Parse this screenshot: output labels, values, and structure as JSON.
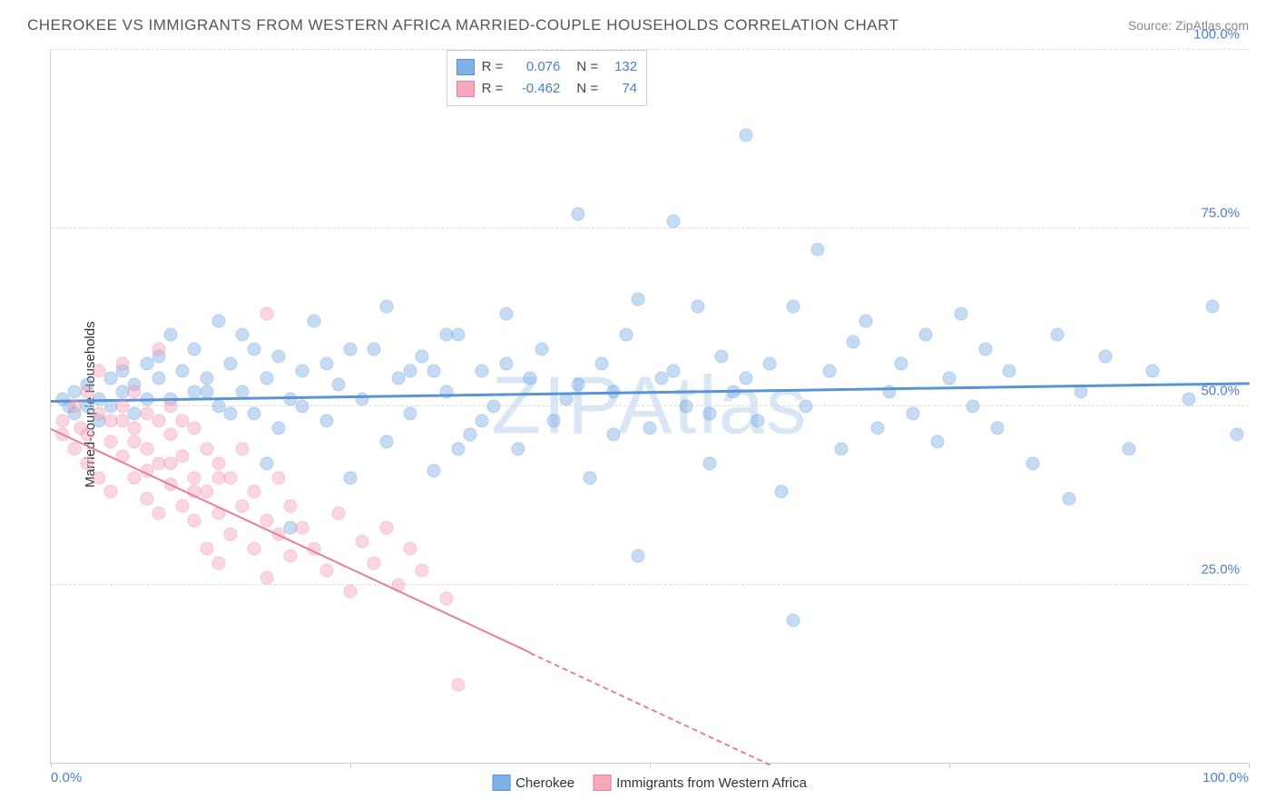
{
  "title": "CHEROKEE VS IMMIGRANTS FROM WESTERN AFRICA MARRIED-COUPLE HOUSEHOLDS CORRELATION CHART",
  "source_label": "Source: ",
  "source_name": "ZipAtlas.com",
  "y_axis_label": "Married-couple Households",
  "watermark": "ZIPAtlas",
  "watermark_color": "#d8e6f5",
  "chart": {
    "type": "scatter",
    "background_color": "#ffffff",
    "grid_color": "#dddddd",
    "border_color": "#cccccc",
    "xlim": [
      0,
      100
    ],
    "ylim": [
      0,
      100
    ],
    "x_ticks": [
      0,
      25,
      50,
      75,
      100
    ],
    "x_tick_labels": [
      "0.0%",
      "",
      "",
      "",
      "100.0%"
    ],
    "y_ticks": [
      25,
      50,
      75,
      100
    ],
    "y_tick_labels": [
      "25.0%",
      "50.0%",
      "75.0%",
      "100.0%"
    ],
    "tick_label_color": "#4a7fc9",
    "marker_size": 15,
    "marker_opacity": 0.45,
    "series": [
      {
        "name": "Cherokee",
        "color": "#7fb0e8",
        "border_color": "#5a93d6",
        "R": "0.076",
        "N": "132",
        "trend": {
          "y_start": 51,
          "y_end": 53.5,
          "width": 3
        },
        "points": [
          [
            1,
            51
          ],
          [
            1.5,
            50
          ],
          [
            2,
            52
          ],
          [
            2,
            49
          ],
          [
            3,
            50
          ],
          [
            3,
            53
          ],
          [
            4,
            51
          ],
          [
            4,
            48
          ],
          [
            5,
            54
          ],
          [
            5,
            50
          ],
          [
            6,
            52
          ],
          [
            6,
            55
          ],
          [
            7,
            53
          ],
          [
            7,
            49
          ],
          [
            8,
            56
          ],
          [
            8,
            51
          ],
          [
            9,
            54
          ],
          [
            9,
            57
          ],
          [
            10,
            51
          ],
          [
            10,
            60
          ],
          [
            11,
            55
          ],
          [
            12,
            58
          ],
          [
            12,
            52
          ],
          [
            13,
            54
          ],
          [
            14,
            62
          ],
          [
            14,
            50
          ],
          [
            15,
            56
          ],
          [
            16,
            52
          ],
          [
            16,
            60
          ],
          [
            17,
            49
          ],
          [
            18,
            54
          ],
          [
            18,
            42
          ],
          [
            19,
            57
          ],
          [
            20,
            51
          ],
          [
            20,
            33
          ],
          [
            21,
            55
          ],
          [
            22,
            62
          ],
          [
            23,
            48
          ],
          [
            24,
            53
          ],
          [
            25,
            58
          ],
          [
            25,
            40
          ],
          [
            26,
            51
          ],
          [
            28,
            64
          ],
          [
            28,
            45
          ],
          [
            29,
            54
          ],
          [
            30,
            49
          ],
          [
            31,
            57
          ],
          [
            32,
            41
          ],
          [
            33,
            52
          ],
          [
            34,
            60
          ],
          [
            35,
            46
          ],
          [
            36,
            55
          ],
          [
            37,
            50
          ],
          [
            38,
            63
          ],
          [
            39,
            44
          ],
          [
            40,
            54
          ],
          [
            41,
            58
          ],
          [
            42,
            48
          ],
          [
            43,
            51
          ],
          [
            44,
            77
          ],
          [
            45,
            40
          ],
          [
            46,
            56
          ],
          [
            47,
            52
          ],
          [
            48,
            60
          ],
          [
            49,
            29
          ],
          [
            49,
            65
          ],
          [
            50,
            47
          ],
          [
            51,
            54
          ],
          [
            52,
            76
          ],
          [
            53,
            50
          ],
          [
            54,
            64
          ],
          [
            55,
            42
          ],
          [
            56,
            57
          ],
          [
            57,
            52
          ],
          [
            58,
            88
          ],
          [
            59,
            48
          ],
          [
            60,
            56
          ],
          [
            61,
            38
          ],
          [
            62,
            64
          ],
          [
            62,
            20
          ],
          [
            63,
            50
          ],
          [
            64,
            72
          ],
          [
            65,
            55
          ],
          [
            66,
            44
          ],
          [
            67,
            59
          ],
          [
            68,
            62
          ],
          [
            69,
            47
          ],
          [
            70,
            52
          ],
          [
            71,
            56
          ],
          [
            72,
            49
          ],
          [
            73,
            60
          ],
          [
            74,
            45
          ],
          [
            75,
            54
          ],
          [
            76,
            63
          ],
          [
            77,
            50
          ],
          [
            78,
            58
          ],
          [
            79,
            47
          ],
          [
            80,
            55
          ],
          [
            82,
            42
          ],
          [
            84,
            60
          ],
          [
            85,
            37
          ],
          [
            86,
            52
          ],
          [
            88,
            57
          ],
          [
            90,
            44
          ],
          [
            92,
            55
          ],
          [
            95,
            51
          ],
          [
            97,
            64
          ],
          [
            99,
            46
          ],
          [
            30,
            55
          ],
          [
            33,
            60
          ],
          [
            27,
            58
          ],
          [
            23,
            56
          ],
          [
            21,
            50
          ],
          [
            19,
            47
          ],
          [
            17,
            58
          ],
          [
            15,
            49
          ],
          [
            13,
            52
          ],
          [
            38,
            56
          ],
          [
            36,
            48
          ],
          [
            34,
            44
          ],
          [
            32,
            55
          ],
          [
            44,
            53
          ],
          [
            47,
            46
          ],
          [
            52,
            55
          ],
          [
            55,
            49
          ],
          [
            58,
            54
          ]
        ]
      },
      {
        "name": "Immigrants from Western Africa",
        "color": "#f5a8bc",
        "border_color": "#ea7d9b",
        "R": "-0.462",
        "N": "74",
        "trend": {
          "y_start": 47,
          "y_end": 0,
          "x_end": 60,
          "width": 2,
          "dash_after": 40
        },
        "points": [
          [
            1,
            48
          ],
          [
            1,
            46
          ],
          [
            2,
            50
          ],
          [
            2,
            44
          ],
          [
            2.5,
            47
          ],
          [
            3,
            52
          ],
          [
            3,
            42
          ],
          [
            3,
            46
          ],
          [
            4,
            49
          ],
          [
            4,
            40
          ],
          [
            4,
            55
          ],
          [
            5,
            45
          ],
          [
            5,
            48
          ],
          [
            5,
            38
          ],
          [
            6,
            50
          ],
          [
            6,
            43
          ],
          [
            6,
            56
          ],
          [
            7,
            40
          ],
          [
            7,
            47
          ],
          [
            7,
            52
          ],
          [
            8,
            37
          ],
          [
            8,
            44
          ],
          [
            8,
            49
          ],
          [
            9,
            42
          ],
          [
            9,
            35
          ],
          [
            9,
            58
          ],
          [
            10,
            46
          ],
          [
            10,
            39
          ],
          [
            10,
            50
          ],
          [
            11,
            43
          ],
          [
            11,
            36
          ],
          [
            11,
            48
          ],
          [
            12,
            40
          ],
          [
            12,
            34
          ],
          [
            12,
            47
          ],
          [
            13,
            38
          ],
          [
            13,
            44
          ],
          [
            13,
            30
          ],
          [
            14,
            42
          ],
          [
            14,
            35
          ],
          [
            14,
            28
          ],
          [
            15,
            40
          ],
          [
            15,
            32
          ],
          [
            16,
            36
          ],
          [
            16,
            44
          ],
          [
            17,
            30
          ],
          [
            17,
            38
          ],
          [
            18,
            34
          ],
          [
            18,
            26
          ],
          [
            19,
            40
          ],
          [
            19,
            32
          ],
          [
            20,
            29
          ],
          [
            20,
            36
          ],
          [
            21,
            33
          ],
          [
            22,
            30
          ],
          [
            23,
            27
          ],
          [
            24,
            35
          ],
          [
            25,
            24
          ],
          [
            26,
            31
          ],
          [
            27,
            28
          ],
          [
            28,
            33
          ],
          [
            29,
            25
          ],
          [
            30,
            30
          ],
          [
            31,
            27
          ],
          [
            33,
            23
          ],
          [
            34,
            11
          ],
          [
            6,
            48
          ],
          [
            7,
            45
          ],
          [
            8,
            41
          ],
          [
            9,
            48
          ],
          [
            10,
            42
          ],
          [
            12,
            38
          ],
          [
            14,
            40
          ],
          [
            18,
            63
          ]
        ]
      }
    ]
  },
  "legend_labels": [
    "Cherokee",
    "Immigrants from Western Africa"
  ]
}
